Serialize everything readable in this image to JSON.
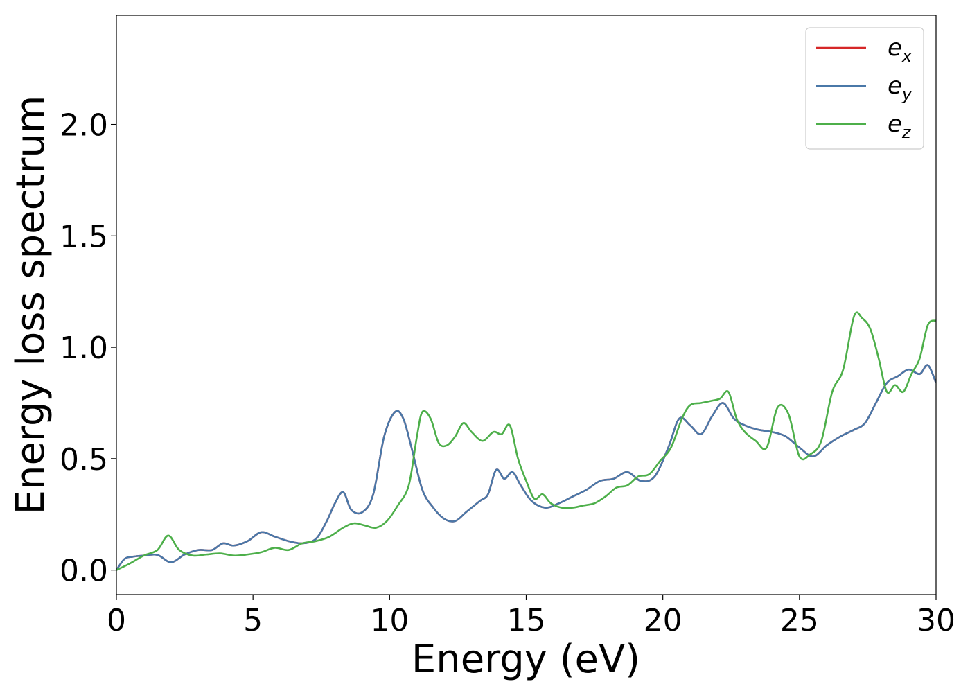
{
  "chart_data": {
    "type": "line",
    "xlabel": "Energy (eV)",
    "ylabel": "Energy loss spectrum",
    "xlim": [
      0,
      30
    ],
    "ylim": [
      -0.11,
      2.49
    ],
    "xticks": [
      0,
      5,
      10,
      15,
      20,
      25,
      30
    ],
    "xtick_labels": [
      "0",
      "5",
      "10",
      "15",
      "20",
      "25",
      "30"
    ],
    "yticks": [
      0.0,
      0.5,
      1.0,
      1.5,
      2.0
    ],
    "ytick_labels": [
      "0.0",
      "0.5",
      "1.0",
      "1.5",
      "2.0"
    ],
    "grid": false,
    "legend_position": "top-right",
    "series": [
      {
        "name": "e_x",
        "label_base": "e",
        "label_sub": "x",
        "color": "#d62728",
        "x": [
          0,
          0.3,
          0.6,
          1.0,
          1.5,
          2.0,
          2.5,
          3.0,
          3.5,
          3.9,
          4.3,
          4.8,
          5.3,
          5.8,
          6.3,
          6.8,
          7.3,
          7.7,
          8.0,
          8.3,
          8.6,
          9.0,
          9.4,
          9.8,
          10.2,
          10.5,
          10.8,
          11.2,
          11.6,
          12.0,
          12.4,
          12.8,
          13.3,
          13.6,
          13.9,
          14.2,
          14.5,
          14.8,
          15.2,
          15.7,
          16.2,
          16.7,
          17.2,
          17.7,
          18.2,
          18.7,
          19.2,
          19.7,
          20.2,
          20.6,
          21.0,
          21.4,
          21.8,
          22.2,
          22.6,
          23.0,
          23.5,
          24.0,
          24.5,
          25.0,
          25.5,
          26.0,
          26.5,
          27.0,
          27.4,
          27.8,
          28.2,
          28.6,
          29.0,
          29.4,
          29.7,
          30.0
        ],
        "values": [
          0.0,
          0.05,
          0.06,
          0.065,
          0.068,
          0.035,
          0.07,
          0.09,
          0.09,
          0.12,
          0.11,
          0.13,
          0.17,
          0.15,
          0.13,
          0.12,
          0.14,
          0.22,
          0.3,
          0.35,
          0.27,
          0.26,
          0.34,
          0.6,
          0.71,
          0.68,
          0.55,
          0.36,
          0.28,
          0.23,
          0.22,
          0.26,
          0.31,
          0.34,
          0.45,
          0.41,
          0.44,
          0.38,
          0.31,
          0.28,
          0.3,
          0.33,
          0.36,
          0.4,
          0.41,
          0.44,
          0.4,
          0.42,
          0.55,
          0.68,
          0.65,
          0.61,
          0.69,
          0.75,
          0.68,
          0.65,
          0.63,
          0.62,
          0.6,
          0.55,
          0.51,
          0.56,
          0.6,
          0.63,
          0.66,
          0.75,
          0.84,
          0.87,
          0.9,
          0.88,
          0.92,
          0.84
        ]
      },
      {
        "name": "e_y",
        "label_base": "e",
        "label_sub": "y",
        "color": "#4a78a8",
        "x": [
          0,
          0.3,
          0.6,
          1.0,
          1.5,
          2.0,
          2.5,
          3.0,
          3.5,
          3.9,
          4.3,
          4.8,
          5.3,
          5.8,
          6.3,
          6.8,
          7.3,
          7.7,
          8.0,
          8.3,
          8.6,
          9.0,
          9.4,
          9.8,
          10.2,
          10.5,
          10.8,
          11.2,
          11.6,
          12.0,
          12.4,
          12.8,
          13.3,
          13.6,
          13.9,
          14.2,
          14.5,
          14.8,
          15.2,
          15.7,
          16.2,
          16.7,
          17.2,
          17.7,
          18.2,
          18.7,
          19.2,
          19.7,
          20.2,
          20.6,
          21.0,
          21.4,
          21.8,
          22.2,
          22.6,
          23.0,
          23.5,
          24.0,
          24.5,
          25.0,
          25.5,
          26.0,
          26.5,
          27.0,
          27.4,
          27.8,
          28.2,
          28.6,
          29.0,
          29.4,
          29.7,
          30.0
        ],
        "values": [
          0.0,
          0.05,
          0.06,
          0.065,
          0.068,
          0.035,
          0.07,
          0.09,
          0.09,
          0.12,
          0.11,
          0.13,
          0.17,
          0.15,
          0.13,
          0.12,
          0.14,
          0.22,
          0.3,
          0.35,
          0.27,
          0.26,
          0.34,
          0.6,
          0.71,
          0.68,
          0.55,
          0.36,
          0.28,
          0.23,
          0.22,
          0.26,
          0.31,
          0.34,
          0.45,
          0.41,
          0.44,
          0.38,
          0.31,
          0.28,
          0.3,
          0.33,
          0.36,
          0.4,
          0.41,
          0.44,
          0.4,
          0.42,
          0.55,
          0.68,
          0.65,
          0.61,
          0.69,
          0.75,
          0.68,
          0.65,
          0.63,
          0.62,
          0.6,
          0.55,
          0.51,
          0.56,
          0.6,
          0.63,
          0.66,
          0.75,
          0.84,
          0.87,
          0.9,
          0.88,
          0.92,
          0.84
        ]
      },
      {
        "name": "e_z",
        "label_base": "e",
        "label_sub": "z",
        "color": "#4daf4a",
        "x": [
          0,
          0.5,
          1.0,
          1.5,
          1.9,
          2.3,
          2.8,
          3.3,
          3.8,
          4.3,
          4.8,
          5.3,
          5.8,
          6.3,
          6.8,
          7.3,
          7.8,
          8.3,
          8.7,
          9.1,
          9.5,
          9.9,
          10.3,
          10.7,
          11.0,
          11.2,
          11.5,
          11.8,
          12.1,
          12.4,
          12.7,
          13.0,
          13.4,
          13.8,
          14.1,
          14.4,
          14.7,
          15.0,
          15.3,
          15.6,
          15.9,
          16.3,
          16.7,
          17.1,
          17.5,
          17.9,
          18.3,
          18.7,
          19.1,
          19.5,
          19.9,
          20.3,
          20.7,
          21.0,
          21.4,
          21.8,
          22.1,
          22.4,
          22.7,
          23.0,
          23.4,
          23.8,
          24.2,
          24.6,
          25.0,
          25.4,
          25.8,
          26.2,
          26.6,
          27.0,
          27.3,
          27.6,
          27.9,
          28.2,
          28.5,
          28.8,
          29.1,
          29.4,
          29.7,
          30.0
        ],
        "values": [
          0.0,
          0.03,
          0.065,
          0.09,
          0.155,
          0.09,
          0.065,
          0.07,
          0.075,
          0.065,
          0.07,
          0.08,
          0.1,
          0.09,
          0.12,
          0.13,
          0.15,
          0.19,
          0.21,
          0.2,
          0.19,
          0.22,
          0.29,
          0.38,
          0.6,
          0.71,
          0.68,
          0.57,
          0.56,
          0.6,
          0.66,
          0.62,
          0.58,
          0.62,
          0.61,
          0.65,
          0.5,
          0.4,
          0.32,
          0.34,
          0.3,
          0.28,
          0.28,
          0.29,
          0.3,
          0.33,
          0.37,
          0.38,
          0.42,
          0.43,
          0.49,
          0.55,
          0.68,
          0.74,
          0.75,
          0.76,
          0.77,
          0.8,
          0.68,
          0.62,
          0.58,
          0.55,
          0.73,
          0.7,
          0.51,
          0.52,
          0.58,
          0.8,
          0.9,
          1.14,
          1.13,
          1.08,
          0.95,
          0.8,
          0.83,
          0.8,
          0.88,
          0.95,
          1.1,
          1.12
        ]
      }
    ]
  }
}
